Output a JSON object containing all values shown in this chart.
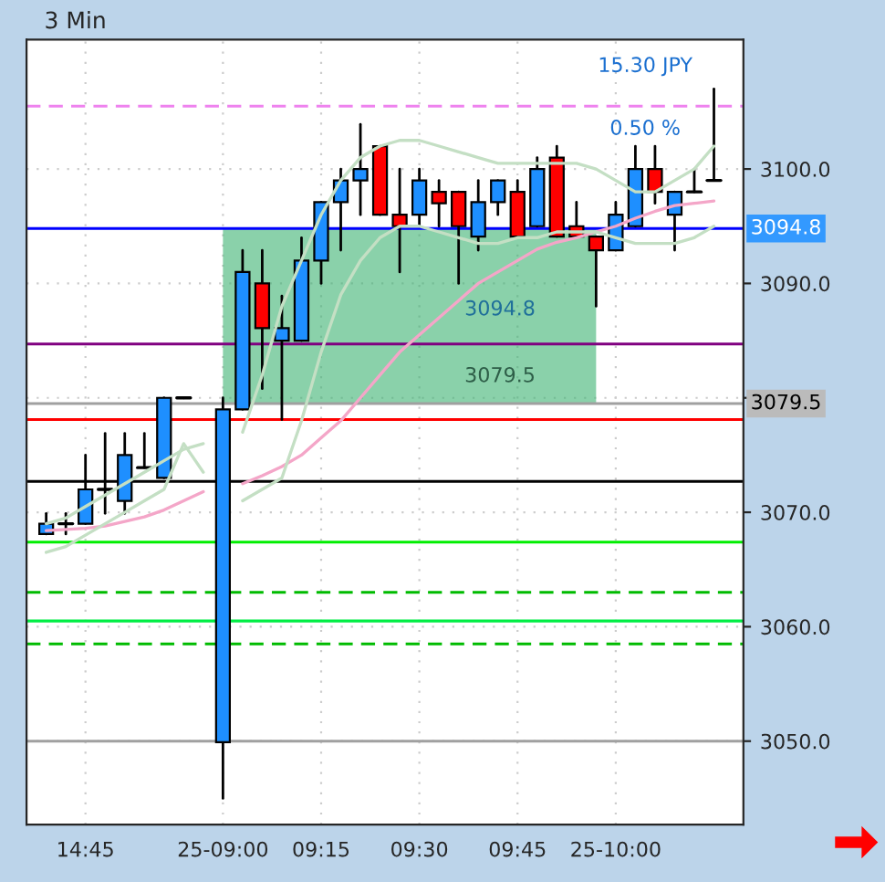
{
  "chart_data": {
    "type": "candlestick",
    "title": "3 Min",
    "categories": [
      null,
      null,
      "14:45",
      null,
      null,
      null,
      null,
      null,
      null,
      "25-09:00",
      null,
      null,
      null,
      null,
      "09:15",
      null,
      null,
      null,
      null,
      "09:30",
      null,
      null,
      null,
      null,
      "09:45",
      null,
      null,
      null,
      null,
      "25-10:00",
      null,
      null,
      null,
      null,
      null
    ],
    "ohlc": [
      [
        3068.1,
        3069.9,
        3068.1,
        3069.0
      ],
      [
        3069.0,
        3069.9,
        3068.1,
        3069.0
      ],
      [
        3069.0,
        3075.0,
        3069.0,
        3072.0
      ],
      [
        3072.0,
        3076.9,
        3069.9,
        3072.0
      ],
      [
        3071.0,
        3076.9,
        3069.9,
        3075.0
      ],
      [
        3073.9,
        3076.9,
        3073.9,
        3073.9
      ],
      [
        3073.0,
        3080.0,
        3073.0,
        3080.0
      ],
      [
        3080.0,
        3080.0,
        3080.0,
        3080.0
      ],
      null,
      [
        3049.9,
        3080.0,
        3045.0,
        3079.0
      ],
      [
        3079.0,
        3092.9,
        3079.0,
        3091.0
      ],
      [
        3090.0,
        3092.9,
        3080.8,
        3086.1
      ],
      [
        3085.0,
        3088.9,
        3078.1,
        3086.1
      ],
      [
        3085.0,
        3094.0,
        3085.0,
        3092.0
      ],
      [
        3092.0,
        3097.1,
        3090.0,
        3097.1
      ],
      [
        3097.1,
        3100.0,
        3092.9,
        3099.0
      ],
      [
        3099.0,
        3103.9,
        3096.0,
        3100.0
      ],
      [
        3102.0,
        3102.0,
        3096.0,
        3096.0
      ],
      [
        3096.0,
        3100.0,
        3091.0,
        3095.0
      ],
      [
        3096.0,
        3100.0,
        3095.0,
        3099.0
      ],
      [
        3098.0,
        3099.0,
        3095.0,
        3097.0
      ],
      [
        3098.0,
        3098.0,
        3090.0,
        3095.0
      ],
      [
        3094.1,
        3099.0,
        3092.9,
        3097.1
      ],
      [
        3097.1,
        3099.0,
        3096.0,
        3099.0
      ],
      [
        3098.0,
        3099.0,
        3094.1,
        3094.1
      ],
      [
        3095.0,
        3101.0,
        3095.0,
        3100.0
      ],
      [
        3101.0,
        3102.0,
        3094.1,
        3094.1
      ],
      [
        3095.0,
        3097.1,
        3094.1,
        3094.1
      ],
      [
        3094.1,
        3094.1,
        3088.0,
        3092.9
      ],
      [
        3092.9,
        3097.1,
        3092.9,
        3096.0
      ],
      [
        3095.0,
        3102.0,
        3095.0,
        3100.0
      ],
      [
        3100.0,
        3102.0,
        3097.0,
        3098.0
      ],
      [
        3096.0,
        3098.0,
        3092.9,
        3098.0
      ],
      [
        3098.0,
        3100.0,
        3098.0,
        3098.0
      ],
      [
        3099.0,
        3107.0,
        3099.0,
        3099.0
      ]
    ],
    "colors": [
      "#1e8fff",
      "#000000",
      "#1e8fff",
      "#000000",
      "#1e8fff",
      "#000000",
      "#1e8fff",
      "#000000",
      null,
      "#1e8fff",
      "#1e8fff",
      "#ff0000",
      "#1e8fff",
      "#1e8fff",
      "#1e8fff",
      "#1e8fff",
      "#1e8fff",
      "#ff0000",
      "#ff0000",
      "#1e8fff",
      "#ff0000",
      "#ff0000",
      "#1e8fff",
      "#1e8fff",
      "#ff0000",
      "#1e8fff",
      "#ff0000",
      "#ff0000",
      "#ff0000",
      "#1e8fff",
      "#1e8fff",
      "#ff0000",
      "#1e8fff",
      "#000000",
      "#000000"
    ],
    "series": [
      {
        "type": "line",
        "color": "#f4a6c8",
        "values": [
          3068.4,
          3068.5,
          3068.6,
          3068.8,
          3069.2,
          3069.6,
          3070.2,
          3071.0,
          3071.8,
          null,
          3072.5,
          3073.2,
          3074.0,
          3075.0,
          3076.5,
          3078.0,
          3080.0,
          3082.0,
          3084.0,
          3085.5,
          3087.0,
          3088.5,
          3090.0,
          3091.0,
          3092.0,
          3093.0,
          3093.6,
          3094.0,
          3094.5,
          3095.0,
          3095.7,
          3096.3,
          3096.8,
          3097.0,
          3097.2
        ]
      },
      {
        "type": "line",
        "color": "#c4dfc4",
        "values": [
          3069.0,
          3069.5,
          3070.5,
          3071.5,
          3072.5,
          3073.5,
          3074.5,
          3075.5,
          3076.0,
          null,
          3077.0,
          3082.0,
          3088.0,
          3092.0,
          3096.0,
          3099.0,
          3101.0,
          3102.0,
          3102.5,
          3102.5,
          3102.0,
          3101.5,
          3101.0,
          3100.5,
          3100.5,
          3100.5,
          3100.5,
          3100.5,
          3100.0,
          3099.0,
          3098.0,
          3098.0,
          3099.0,
          3100.0,
          3102.0
        ]
      },
      {
        "type": "line",
        "color": "#c4dfc4",
        "values": [
          3066.5,
          3067.0,
          3068.0,
          3069.0,
          3070.0,
          3071.0,
          3072.0,
          3076.0,
          3073.5,
          null,
          3071.0,
          3072.0,
          3073.0,
          3078.0,
          3084.0,
          3089.0,
          3092.0,
          3094.0,
          3095.0,
          3095.0,
          3094.5,
          3094.0,
          3093.5,
          3093.5,
          3094.0,
          3094.0,
          3094.5,
          3094.5,
          3094.5,
          3094.0,
          3093.5,
          3093.5,
          3093.5,
          3094.0,
          3095.0
        ]
      }
    ],
    "ylim": [
      3042.7,
      3111.3
    ],
    "yticks": [
      {
        "value": 3050,
        "label": "3050.0"
      },
      {
        "value": 3060,
        "label": "3060.0"
      },
      {
        "value": 3070,
        "label": "3070.0"
      },
      {
        "value": 3080,
        "label": null
      },
      {
        "value": 3090,
        "label": "3090.0"
      },
      {
        "value": 3100,
        "label": "3100.0"
      }
    ],
    "grid": true,
    "ref_lines": [
      {
        "axis": "y",
        "value": 3105.5,
        "color": "#ee82ee",
        "line_style": "dashed"
      },
      {
        "axis": "y",
        "value": 3094.8,
        "color": "#0000ff",
        "line_style": "solid",
        "label": "3094.8"
      },
      {
        "axis": "y",
        "value": 3084.7,
        "color": "#800080",
        "line_style": "solid"
      },
      {
        "axis": "y",
        "value": 3079.5,
        "color": "#a0a0a0",
        "line_style": "solid",
        "label": "3079.5"
      },
      {
        "axis": "y",
        "value": 3078.1,
        "color": "#ff0000",
        "line_style": "solid"
      },
      {
        "axis": "y",
        "value": 3072.7,
        "color": "#000000",
        "line_style": "solid"
      },
      {
        "axis": "y",
        "value": 3067.4,
        "color": "#00ee00",
        "line_style": "solid"
      },
      {
        "axis": "y",
        "value": 3063.0,
        "color": "#00bb00",
        "line_style": "dashed"
      },
      {
        "axis": "y",
        "value": 3060.5,
        "color": "#00ee44",
        "line_style": "solid"
      },
      {
        "axis": "y",
        "value": 3058.5,
        "color": "#00bb00",
        "line_style": "dashed"
      },
      {
        "axis": "y",
        "value": 3050.0,
        "color": "#a0a0a0",
        "line_style": "solid"
      }
    ],
    "bands": [
      {
        "axis": "y",
        "from": 3079.5,
        "to": 3094.8,
        "color": "#3cb371"
      }
    ],
    "annotations": [
      "3094.8",
      "3079.5",
      "15.30 JPY",
      "0.50 %"
    ]
  }
}
